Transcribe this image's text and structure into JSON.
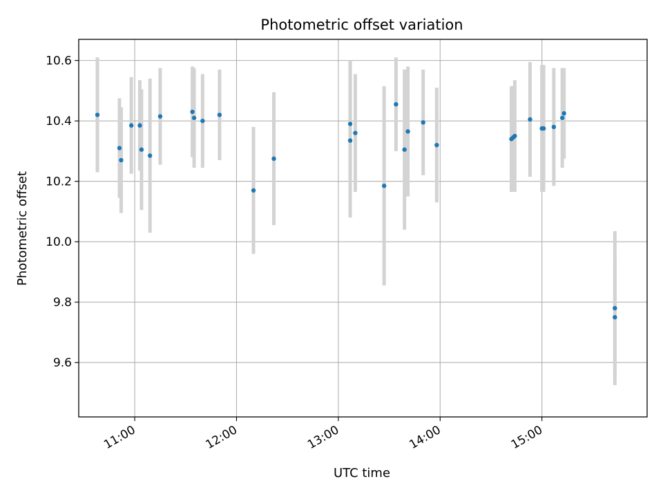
{
  "chart_data": {
    "type": "scatter",
    "title": "Photometric offset variation",
    "xlabel": "UTC time",
    "ylabel": "Photometric offset",
    "x_unit": "UTC time (HH:MM)",
    "xlim": [
      "10:27",
      "16:02"
    ],
    "ylim": [
      9.42,
      10.67
    ],
    "x_ticks": [
      "11:00",
      "12:00",
      "13:00",
      "14:00",
      "15:00"
    ],
    "y_ticks": [
      9.6,
      9.8,
      10.0,
      10.2,
      10.4,
      10.6
    ],
    "grid": true,
    "legend": "none",
    "marker_color": "#1f77b4",
    "errorbar_color": "#d3d3d3",
    "series": [
      {
        "points": [
          {
            "x": "10:38",
            "y": 10.42,
            "err": 0.19
          },
          {
            "x": "10:51",
            "y": 10.31,
            "err": 0.165
          },
          {
            "x": "10:52",
            "y": 10.27,
            "err": 0.175
          },
          {
            "x": "10:58",
            "y": 10.385,
            "err": 0.16
          },
          {
            "x": "11:03",
            "y": 10.385,
            "err": 0.15
          },
          {
            "x": "11:04",
            "y": 10.305,
            "err": 0.2
          },
          {
            "x": "11:09",
            "y": 10.285,
            "err": 0.255
          },
          {
            "x": "11:15",
            "y": 10.415,
            "err": 0.16
          },
          {
            "x": "11:34",
            "y": 10.43,
            "err": 0.15
          },
          {
            "x": "11:35",
            "y": 10.41,
            "err": 0.165
          },
          {
            "x": "11:40",
            "y": 10.4,
            "err": 0.155
          },
          {
            "x": "11:50",
            "y": 10.42,
            "err": 0.15
          },
          {
            "x": "12:10",
            "y": 10.17,
            "err": 0.21
          },
          {
            "x": "12:22",
            "y": 10.275,
            "err": 0.22
          },
          {
            "x": "13:07",
            "y": 10.39,
            "err": 0.21
          },
          {
            "x": "13:07",
            "y": 10.335,
            "err": 0.255
          },
          {
            "x": "13:10",
            "y": 10.36,
            "err": 0.195
          },
          {
            "x": "13:27",
            "y": 10.185,
            "err": 0.33
          },
          {
            "x": "13:34",
            "y": 10.455,
            "err": 0.155
          },
          {
            "x": "13:39",
            "y": 10.305,
            "err": 0.265
          },
          {
            "x": "13:41",
            "y": 10.365,
            "err": 0.215
          },
          {
            "x": "13:50",
            "y": 10.395,
            "err": 0.175
          },
          {
            "x": "13:58",
            "y": 10.32,
            "err": 0.19
          },
          {
            "x": "14:42",
            "y": 10.34,
            "err": 0.175
          },
          {
            "x": "14:43",
            "y": 10.345,
            "err": 0.17
          },
          {
            "x": "14:44",
            "y": 10.35,
            "err": 0.185
          },
          {
            "x": "14:53",
            "y": 10.405,
            "err": 0.19
          },
          {
            "x": "15:00",
            "y": 10.375,
            "err": 0.21
          },
          {
            "x": "15:01",
            "y": 10.375,
            "err": 0.21
          },
          {
            "x": "15:07",
            "y": 10.38,
            "err": 0.195
          },
          {
            "x": "15:12",
            "y": 10.41,
            "err": 0.165
          },
          {
            "x": "15:13",
            "y": 10.425,
            "err": 0.15
          },
          {
            "x": "15:43",
            "y": 9.75,
            "err": 0.19
          },
          {
            "x": "15:43",
            "y": 9.78,
            "err": 0.255
          }
        ]
      }
    ]
  }
}
